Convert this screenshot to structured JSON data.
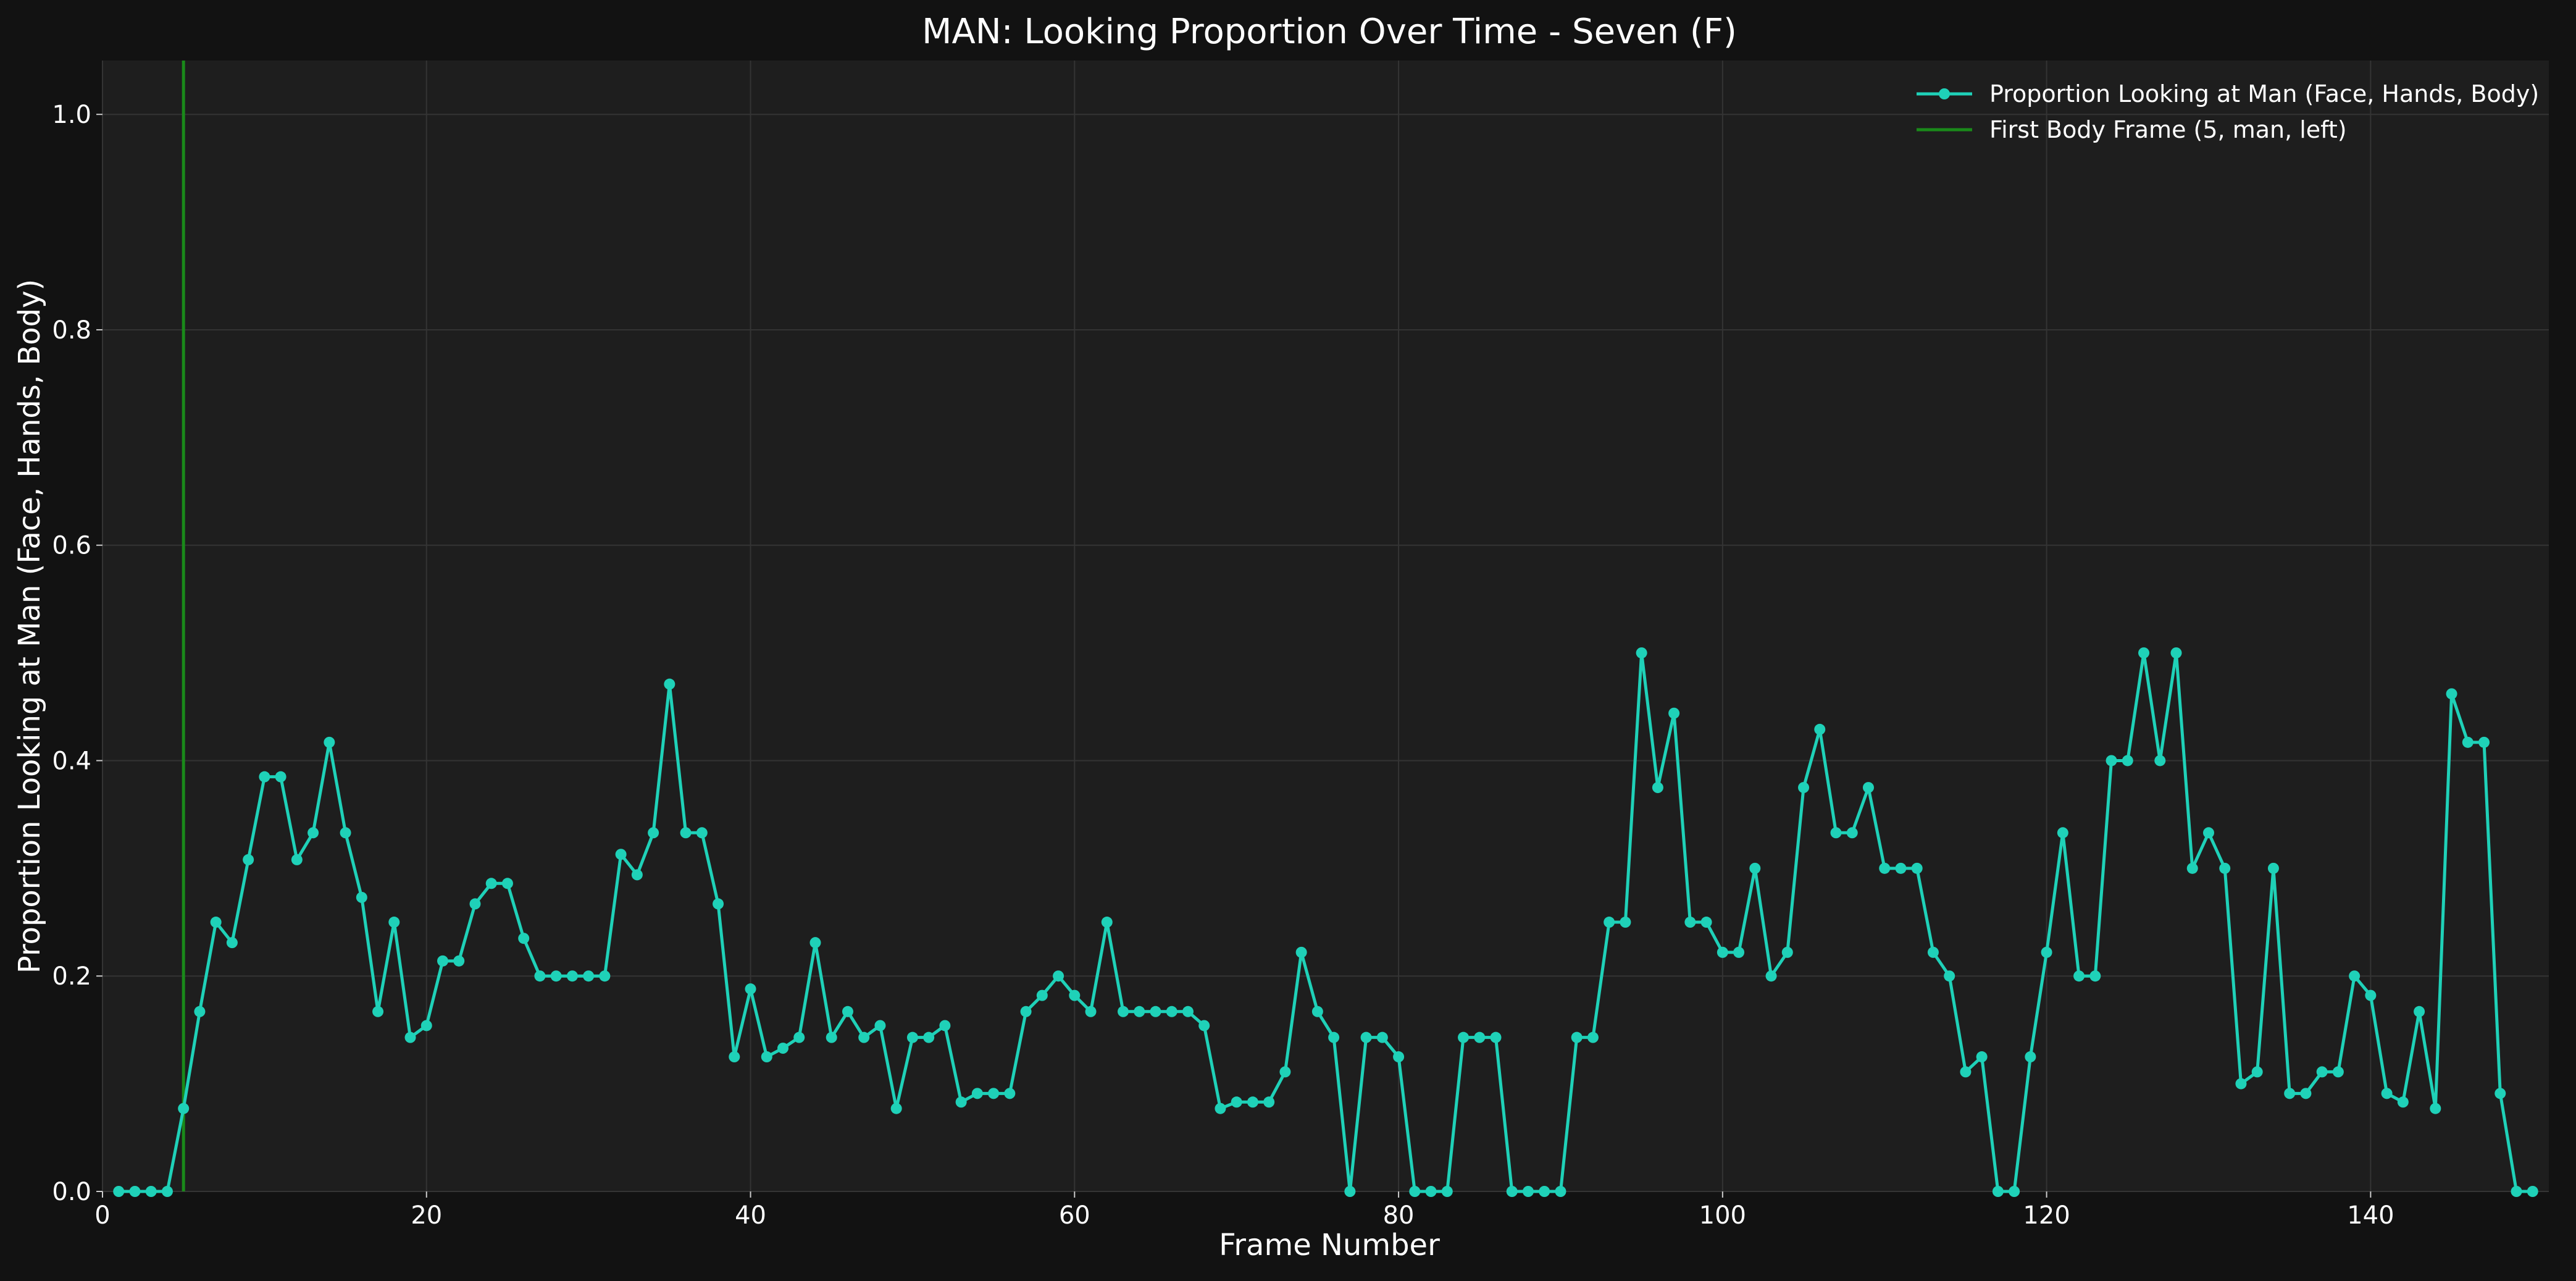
{
  "chart_data": {
    "type": "line",
    "title": "MAN: Looking Proportion Over Time - Seven (F)",
    "xlabel": "Frame Number",
    "ylabel": "Proportion Looking at Man (Face, Hands, Body)",
    "xlim": [
      0,
      151
    ],
    "ylim": [
      0,
      1.05
    ],
    "xticks": [
      0,
      20,
      40,
      60,
      80,
      100,
      120,
      140
    ],
    "yticks": [
      0.0,
      0.2,
      0.4,
      0.6,
      0.8,
      1.0
    ],
    "grid": true,
    "legend_position": "top-right",
    "x": [
      1,
      2,
      3,
      4,
      5,
      6,
      7,
      8,
      9,
      10,
      11,
      12,
      13,
      14,
      15,
      16,
      17,
      18,
      19,
      20,
      21,
      22,
      23,
      24,
      25,
      26,
      27,
      28,
      29,
      30,
      31,
      32,
      33,
      34,
      35,
      36,
      37,
      38,
      39,
      40,
      41,
      42,
      43,
      44,
      45,
      46,
      47,
      48,
      49,
      50,
      51,
      52,
      53,
      54,
      55,
      56,
      57,
      58,
      59,
      60,
      61,
      62,
      63,
      64,
      65,
      66,
      67,
      68,
      69,
      70,
      71,
      72,
      73,
      74,
      75,
      76,
      77,
      78,
      79,
      80,
      81,
      82,
      83,
      84,
      85,
      86,
      87,
      88,
      89,
      90,
      91,
      92,
      93,
      94,
      95,
      96,
      97,
      98,
      99,
      100,
      101,
      102,
      103,
      104,
      105,
      106,
      107,
      108,
      109,
      110,
      111,
      112,
      113,
      114,
      115,
      116,
      117,
      118,
      119,
      120,
      121,
      122,
      123,
      124,
      125,
      126,
      127,
      128,
      129,
      130,
      131,
      132,
      133,
      134,
      135,
      136,
      137,
      138,
      139,
      140,
      141,
      142,
      143,
      144,
      145,
      146,
      147,
      148,
      149,
      150
    ],
    "series": [
      {
        "name": "Proportion Looking at Man (Face, Hands, Body)",
        "color": "#1fd1b8",
        "values": [
          0,
          0,
          0,
          0,
          0.077,
          0.167,
          0.25,
          0.231,
          0.308,
          0.385,
          0.385,
          0.308,
          0.333,
          0.417,
          0.333,
          0.273,
          0.167,
          0.25,
          0.143,
          0.154,
          0.214,
          0.214,
          0.267,
          0.286,
          0.286,
          0.235,
          0.2,
          0.2,
          0.2,
          0.2,
          0.2,
          0.313,
          0.294,
          0.333,
          0.471,
          0.333,
          0.333,
          0.267,
          0.125,
          0.188,
          0.125,
          0.133,
          0.143,
          0.231,
          0.143,
          0.167,
          0.143,
          0.154,
          0.077,
          0.143,
          0.143,
          0.154,
          0.083,
          0.091,
          0.091,
          0.091,
          0.167,
          0.182,
          0.2,
          0.182,
          0.167,
          0.25,
          0.167,
          0.167,
          0.167,
          0.167,
          0.167,
          0.154,
          0.077,
          0.083,
          0.083,
          0.083,
          0.111,
          0.222,
          0.167,
          0.143,
          0,
          0.143,
          0.143,
          0.125,
          0,
          0,
          0,
          0.143,
          0.143,
          0.143,
          0,
          0,
          0,
          0,
          0.143,
          0.143,
          0.25,
          0.25,
          0.5,
          0.375,
          0.444,
          0.25,
          0.25,
          0.222,
          0.222,
          0.3,
          0.2,
          0.222,
          0.375,
          0.429,
          0.333,
          0.333,
          0.375,
          0.3,
          0.3,
          0.3,
          0.222,
          0.2,
          0.111,
          0.125,
          0,
          0,
          0.125,
          0.222,
          0.333,
          0.2,
          0.2,
          0.4,
          0.4,
          0.5,
          0.4,
          0.5,
          0.3,
          0.333,
          0.3,
          0.1,
          0.111,
          0.3,
          0.091,
          0.091,
          0.111,
          0.111,
          0.2,
          0.182,
          0.091,
          0.083,
          0.167,
          0.077,
          0.462,
          0.417,
          0.417,
          0.091,
          0,
          0
        ]
      }
    ],
    "reference_lines": [
      {
        "name": "First Body Frame (5, man, left)",
        "x": 5,
        "color": "#1a8a1a"
      }
    ]
  }
}
